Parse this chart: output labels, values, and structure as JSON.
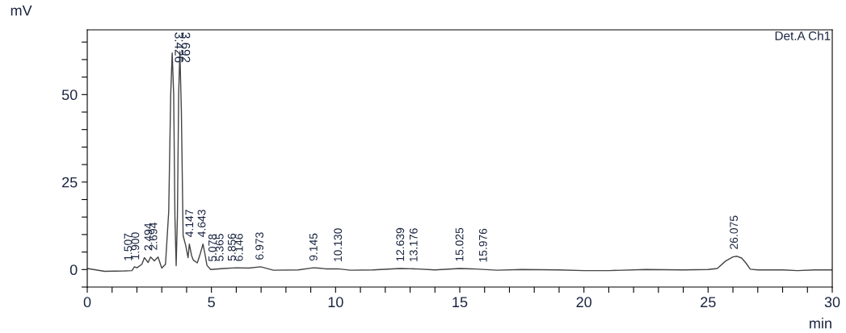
{
  "chart_data": {
    "type": "line",
    "xlabel": "min",
    "ylabel": "mV",
    "xlim": [
      0,
      30
    ],
    "ylim": [
      -5,
      68.5
    ],
    "xticks": [
      0,
      {
        "value": 1,
        "label": null
      },
      {
        "value": 2,
        "label": null
      },
      {
        "value": 3,
        "label": null
      },
      {
        "value": 4,
        "label": null
      },
      5,
      {
        "value": 6,
        "label": null
      },
      {
        "value": 7,
        "label": null
      },
      {
        "value": 8,
        "label": null
      },
      {
        "value": 9,
        "label": null
      },
      10,
      {
        "value": 11,
        "label": null
      },
      {
        "value": 12,
        "label": null
      },
      {
        "value": 13,
        "label": null
      },
      {
        "value": 14,
        "label": null
      },
      15,
      {
        "value": 16,
        "label": null
      },
      {
        "value": 17,
        "label": null
      },
      {
        "value": 18,
        "label": null
      },
      {
        "value": 19,
        "label": null
      },
      20,
      {
        "value": 21,
        "label": null
      },
      {
        "value": 22,
        "label": null
      },
      {
        "value": 23,
        "label": null
      },
      {
        "value": 24,
        "label": null
      },
      25,
      {
        "value": 26,
        "label": null
      },
      {
        "value": 27,
        "label": null
      },
      {
        "value": 28,
        "label": null
      },
      {
        "value": 29,
        "label": null
      },
      30
    ],
    "yticks": [
      {
        "value": -5,
        "label": null
      },
      0,
      {
        "value": 5,
        "label": null
      },
      {
        "value": 10,
        "label": null
      },
      {
        "value": 15,
        "label": null
      },
      {
        "value": 20,
        "label": null
      },
      25,
      {
        "value": 30,
        "label": null
      },
      {
        "value": 35,
        "label": null
      },
      {
        "value": 40,
        "label": null
      },
      {
        "value": 45,
        "label": null
      },
      50,
      {
        "value": 55,
        "label": null
      },
      {
        "value": 60,
        "label": null
      },
      {
        "value": 65,
        "label": null
      }
    ],
    "grid": false,
    "legend": false,
    "marker": "none",
    "line_style": "solid",
    "series": [
      {
        "color": "#444444",
        "x": [
          0,
          0.7,
          1.5,
          1.8,
          1.9,
          2.0,
          2.2,
          2.3,
          2.45,
          2.55,
          2.7,
          2.85,
          3.0,
          3.15,
          3.28,
          3.36,
          3.42,
          3.48,
          3.53,
          3.58,
          3.63,
          3.68,
          3.73,
          3.79,
          3.86,
          3.96,
          4.06,
          4.11,
          4.2,
          4.27,
          4.43,
          4.55,
          4.66,
          4.75,
          4.82,
          4.97,
          5.5,
          6.0,
          6.5,
          6.98,
          7.5,
          8.5,
          9.1,
          9.3,
          9.6,
          10.1,
          10.6,
          11.5,
          12.6,
          13.2,
          14.0,
          15.0,
          15.5,
          16.5,
          17.5,
          19.0,
          20.0,
          21.0,
          22.5,
          24.0,
          25.0,
          25.37,
          25.7,
          26.0,
          26.16,
          26.35,
          26.53,
          26.7,
          27.0,
          28.0,
          28.6,
          29.3,
          30
        ],
        "values": [
          0.3,
          -0.5,
          -0.4,
          -0.3,
          0.8,
          0.5,
          1.5,
          3.4,
          2.0,
          3.6,
          2.5,
          3.6,
          0.4,
          1.5,
          16.6,
          50.0,
          61.9,
          50.0,
          15.0,
          1.1,
          15.0,
          50.0,
          62.3,
          45.0,
          9.7,
          7.0,
          3.4,
          7.3,
          4.0,
          2.7,
          1.9,
          4.5,
          7.3,
          4.0,
          1.2,
          0.0,
          0.3,
          0.5,
          0.4,
          0.8,
          -0.2,
          -0.1,
          0.5,
          0.4,
          0.2,
          0.2,
          -0.2,
          -0.1,
          0.3,
          0.2,
          -0.1,
          0.3,
          0.2,
          -0.2,
          0.0,
          -0.1,
          -0.3,
          -0.3,
          0.0,
          -0.1,
          0.0,
          0.3,
          2.4,
          3.6,
          3.8,
          3.3,
          1.8,
          0.1,
          -0.1,
          -0.1,
          -0.3,
          -0.1,
          -0.1
        ]
      }
    ],
    "annotations": [
      "Det.A Ch1",
      {
        "text": "1.507",
        "x": 1.68,
        "y": 0.5
      },
      {
        "text": "1.900",
        "x": 1.97,
        "y": 0.8
      },
      {
        "text": "2.494",
        "x": 2.494,
        "y": 3.4
      },
      {
        "text": "2.694",
        "x": 2.694,
        "y": 3.6
      },
      {
        "text": "3.426",
        "x": 3.426,
        "y": 61.9
      },
      {
        "text": "3.692",
        "x": 3.692,
        "y": 62.3
      },
      {
        "text": "4.147",
        "x": 4.147,
        "y": 7.3
      },
      {
        "text": "4.643",
        "x": 4.643,
        "y": 7.3
      },
      {
        "text": "5.078",
        "x": 5.078,
        "y": 0.3
      },
      {
        "text": "5.365",
        "x": 5.365,
        "y": 0.4
      },
      {
        "text": "5.856",
        "x": 5.856,
        "y": 0.5
      },
      {
        "text": "6.146",
        "x": 6.146,
        "y": 0.4
      },
      {
        "text": "6.973",
        "x": 6.973,
        "y": 0.8
      },
      {
        "text": "9.145",
        "x": 9.145,
        "y": 0.5
      },
      {
        "text": "10.130",
        "x": 10.13,
        "y": 0.2
      },
      {
        "text": "12.639",
        "x": 12.639,
        "y": 0.3
      },
      {
        "text": "13.176",
        "x": 13.176,
        "y": 0.2
      },
      {
        "text": "15.025",
        "x": 15.025,
        "y": 0.3
      },
      {
        "text": "15.976",
        "x": 15.976,
        "y": 0.1
      },
      {
        "text": "26.075",
        "x": 26.075,
        "y": 3.8
      }
    ]
  }
}
